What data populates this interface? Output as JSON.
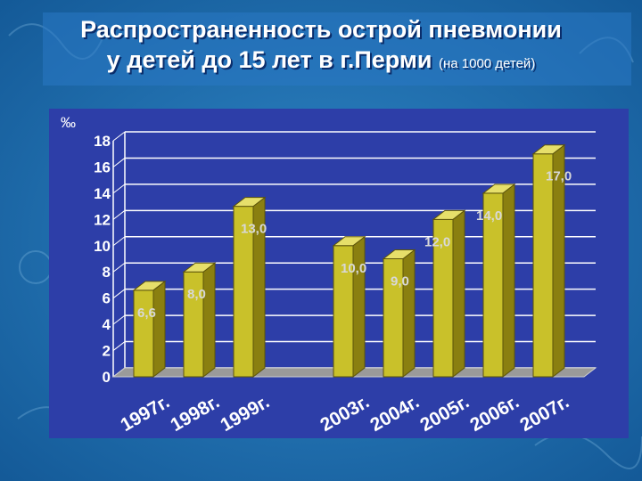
{
  "title": {
    "line1": "Распространенность острой пневмонии",
    "line2": "у детей до 15 лет в г.Перми",
    "unit_note": "(на 1000 детей)"
  },
  "colors": {
    "bar_front": "#c9c12a",
    "bar_side": "#8a7f10",
    "bar_top": "#e6df6a",
    "plot_bg": "#2d3ea8",
    "text": "#ffffff",
    "label_text": "#d8d8d8"
  },
  "chart_data": {
    "type": "bar",
    "ylabel": "‰",
    "ylim": [
      0,
      18
    ],
    "yticks": [
      "0",
      "2",
      "4",
      "6",
      "8",
      "10",
      "12",
      "14",
      "16",
      "18"
    ],
    "grid": true,
    "categories": [
      "1997г.",
      "1998г.",
      "1999г.",
      "2003г.",
      "2004г.",
      "2005г.",
      "2006г.",
      "2007г."
    ],
    "values": [
      6.6,
      8.0,
      13.0,
      10.0,
      9.0,
      12.0,
      14.0,
      17.0
    ],
    "data_labels": [
      "6,6",
      "8,0",
      "13,0",
      "10,0",
      "9,0",
      "12,0",
      "14,0",
      "17,0"
    ]
  }
}
